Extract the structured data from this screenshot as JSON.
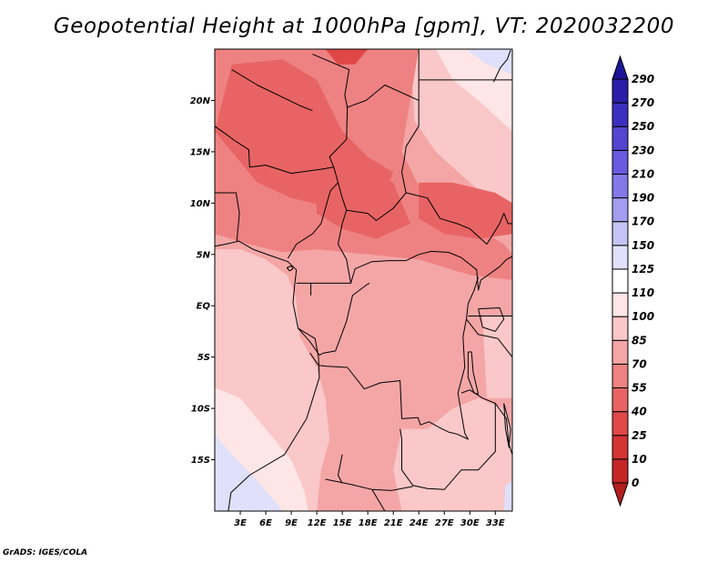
{
  "title": "Geopotential Height at 1000hPa [gpm], VT: 2020032200",
  "credit": "GrADS: IGES/COLA",
  "map": {
    "lon_range": [
      0,
      35
    ],
    "lat_range": [
      -20,
      25
    ],
    "lat_ticks": [
      {
        "value": 20,
        "label": "20N"
      },
      {
        "value": 15,
        "label": "15N"
      },
      {
        "value": 10,
        "label": "10N"
      },
      {
        "value": 5,
        "label": "5N"
      },
      {
        "value": 0,
        "label": "EQ"
      },
      {
        "value": -5,
        "label": "5S"
      },
      {
        "value": -10,
        "label": "10S"
      },
      {
        "value": -15,
        "label": "15S"
      }
    ],
    "lon_ticks": [
      {
        "value": 3,
        "label": "3E"
      },
      {
        "value": 6,
        "label": "6E"
      },
      {
        "value": 9,
        "label": "9E"
      },
      {
        "value": 12,
        "label": "12E"
      },
      {
        "value": 15,
        "label": "15E"
      },
      {
        "value": 18,
        "label": "18E"
      },
      {
        "value": 21,
        "label": "21E"
      },
      {
        "value": 24,
        "label": "24E"
      },
      {
        "value": 27,
        "label": "27E"
      },
      {
        "value": 30,
        "label": "30E"
      },
      {
        "value": 33,
        "label": "33E"
      }
    ]
  },
  "colorbar": {
    "levels": [
      "0",
      "10",
      "25",
      "40",
      "55",
      "70",
      "85",
      "100",
      "110",
      "125",
      "150",
      "170",
      "190",
      "210",
      "230",
      "250",
      "270",
      "290"
    ],
    "colors": [
      "#b41e1e",
      "#c42626",
      "#d43434",
      "#e04848",
      "#e86464",
      "#ee8282",
      "#f4a6a6",
      "#fac8c8",
      "#ffe6e6",
      "#ffffff",
      "#e0e0fa",
      "#c4c4f4",
      "#a49cee",
      "#8478e8",
      "#6a5ae0",
      "#5544d0",
      "#3c30c0",
      "#2a1ea8",
      "#1c1496"
    ]
  },
  "regions": [
    {
      "name": "bg",
      "color": "#f4a6a6",
      "points": [
        [
          0,
          25
        ],
        [
          35,
          25
        ],
        [
          35,
          -20
        ],
        [
          0,
          -20
        ]
      ]
    },
    {
      "name": "ocean-west",
      "color": "#fac8c8",
      "points": [
        [
          0,
          5.5
        ],
        [
          3,
          5.5
        ],
        [
          6,
          4.5
        ],
        [
          8.5,
          3
        ],
        [
          9.5,
          1
        ],
        [
          10,
          -3
        ],
        [
          12,
          -6
        ],
        [
          13,
          -9
        ],
        [
          13.5,
          -13
        ],
        [
          12.5,
          -16
        ],
        [
          12,
          -20
        ],
        [
          0,
          -20
        ]
      ]
    },
    {
      "name": "light-south",
      "color": "#ffe6e6",
      "points": [
        [
          0,
          -8
        ],
        [
          3,
          -9
        ],
        [
          6,
          -12
        ],
        [
          9,
          -15
        ],
        [
          10.5,
          -18
        ],
        [
          11,
          -20
        ],
        [
          0,
          -20
        ]
      ]
    },
    {
      "name": "blue-southwest",
      "color": "#e0e0fa",
      "points": [
        [
          0,
          -12.5
        ],
        [
          2,
          -14.5
        ],
        [
          5,
          -17
        ],
        [
          7,
          -19
        ],
        [
          8,
          -20
        ],
        [
          0,
          -20
        ]
      ]
    },
    {
      "name": "light-southeast",
      "color": "#fac8c8",
      "points": [
        [
          22,
          -12
        ],
        [
          25,
          -12
        ],
        [
          28,
          -10
        ],
        [
          31,
          -9
        ],
        [
          34,
          -10
        ],
        [
          35,
          -12
        ],
        [
          35,
          -20
        ],
        [
          22,
          -20
        ],
        [
          21,
          -16
        ]
      ]
    },
    {
      "name": "blue-southeast",
      "color": "#e0e0fa",
      "points": [
        [
          34.2,
          -17.5
        ],
        [
          35,
          -17
        ],
        [
          35,
          -20
        ],
        [
          34,
          -20
        ]
      ]
    },
    {
      "name": "light-east-ocean",
      "color": "#fac8c8",
      "points": [
        [
          31.5,
          -1
        ],
        [
          35,
          -1
        ],
        [
          35,
          -9
        ],
        [
          32,
          -9
        ]
      ]
    },
    {
      "name": "ne-light",
      "color": "#fac8c8",
      "points": [
        [
          23,
          25
        ],
        [
          35,
          25
        ],
        [
          35,
          8
        ],
        [
          33,
          10
        ],
        [
          30,
          12
        ],
        [
          26,
          15
        ],
        [
          23.5,
          18
        ]
      ]
    },
    {
      "name": "ne-white",
      "color": "#ffe6e6",
      "points": [
        [
          26,
          25
        ],
        [
          35,
          25
        ],
        [
          35,
          17
        ],
        [
          31,
          20
        ],
        [
          28,
          22
        ]
      ]
    },
    {
      "name": "ne-blue",
      "color": "#e0e0fa",
      "points": [
        [
          29.5,
          25
        ],
        [
          35,
          25
        ],
        [
          35,
          22.5
        ],
        [
          32,
          23.5
        ]
      ]
    },
    {
      "name": "north-medium",
      "color": "#ee8282",
      "points": [
        [
          0,
          25
        ],
        [
          24,
          25
        ],
        [
          23,
          20
        ],
        [
          22,
          15
        ],
        [
          25,
          10
        ],
        [
          30,
          8
        ],
        [
          34,
          6
        ],
        [
          35,
          5
        ],
        [
          35,
          2.5
        ],
        [
          30,
          3
        ],
        [
          24,
          4.5
        ],
        [
          18,
          5
        ],
        [
          12,
          5.5
        ],
        [
          8,
          5.2
        ],
        [
          4,
          6
        ],
        [
          0,
          7
        ]
      ]
    },
    {
      "name": "north-dark",
      "color": "#e86464",
      "points": [
        [
          2,
          23.5
        ],
        [
          8,
          24
        ],
        [
          12,
          22
        ],
        [
          15,
          17
        ],
        [
          18,
          14.5
        ],
        [
          21,
          13
        ],
        [
          19,
          9
        ],
        [
          14,
          9.5
        ],
        [
          9,
          10.5
        ],
        [
          5,
          12
        ],
        [
          2,
          15
        ],
        [
          0,
          17
        ]
      ]
    },
    {
      "name": "central-dark",
      "color": "#e86464",
      "points": [
        [
          12,
          13
        ],
        [
          17,
          13.5
        ],
        [
          21,
          12
        ],
        [
          23,
          8
        ],
        [
          19,
          6.5
        ],
        [
          15,
          7.5
        ],
        [
          12,
          9
        ]
      ]
    },
    {
      "name": "east-dark",
      "color": "#e86464",
      "points": [
        [
          24,
          12
        ],
        [
          28,
          12
        ],
        [
          33,
          11
        ],
        [
          35,
          10
        ],
        [
          35,
          7
        ],
        [
          31,
          6.5
        ],
        [
          27,
          7
        ],
        [
          24,
          8.5
        ]
      ]
    },
    {
      "name": "top-dark",
      "color": "#e04848",
      "points": [
        [
          13,
          25
        ],
        [
          18,
          25
        ],
        [
          16.5,
          23.5
        ],
        [
          14.5,
          23.5
        ]
      ]
    }
  ],
  "borders": [
    [
      [
        1.6,
        -20
      ],
      [
        1.9,
        -18.2
      ],
      [
        4.1,
        -16.5
      ],
      [
        8.2,
        -14.5
      ],
      [
        10.8,
        -11
      ],
      [
        12.3,
        -7
      ],
      [
        12.2,
        -5
      ],
      [
        11.8,
        -3.2
      ],
      [
        9.8,
        -2.2
      ],
      [
        9.2,
        0.3
      ],
      [
        9.4,
        2
      ],
      [
        9.6,
        3.5
      ],
      [
        8.6,
        4.3
      ],
      [
        6.5,
        4.9
      ],
      [
        4.5,
        5.5
      ],
      [
        2.8,
        6.3
      ],
      [
        1.3,
        6.0
      ],
      [
        0,
        5.8
      ]
    ],
    [
      [
        0,
        17.5
      ],
      [
        2.5,
        16
      ],
      [
        4,
        15.2
      ],
      [
        4.1,
        13.5
      ],
      [
        6,
        13.7
      ],
      [
        9,
        12.9
      ],
      [
        12.5,
        13.3
      ],
      [
        14,
        13.5
      ],
      [
        14.5,
        12
      ],
      [
        13.6,
        11.2
      ],
      [
        12.5,
        8
      ],
      [
        11.5,
        7
      ],
      [
        9.6,
        6
      ],
      [
        8.6,
        4.6
      ]
    ],
    [
      [
        0,
        11
      ],
      [
        2.5,
        11
      ],
      [
        2.9,
        9
      ],
      [
        2.6,
        6.3
      ]
    ],
    [
      [
        2,
        23
      ],
      [
        5,
        21.5
      ],
      [
        10,
        19.5
      ],
      [
        11.5,
        19
      ]
    ],
    [
      [
        11.5,
        24.5
      ],
      [
        15.8,
        23
      ],
      [
        15.3,
        20.5
      ],
      [
        15.6,
        19.3
      ],
      [
        15.5,
        16.2
      ],
      [
        13.5,
        14.5
      ],
      [
        14,
        13.5
      ]
    ],
    [
      [
        15.5,
        19.3
      ],
      [
        17.8,
        20
      ],
      [
        20,
        21.5
      ],
      [
        24,
        20
      ],
      [
        24,
        17.5
      ],
      [
        22.5,
        15.5
      ],
      [
        22.3,
        14.3
      ],
      [
        22,
        13
      ],
      [
        22.5,
        11
      ]
    ],
    [
      [
        24,
        25
      ],
      [
        24,
        20
      ]
    ],
    [
      [
        24,
        22
      ],
      [
        35,
        22
      ]
    ],
    [
      [
        14.5,
        12
      ],
      [
        15,
        10.5
      ],
      [
        15.5,
        9.3
      ],
      [
        18,
        9
      ],
      [
        19,
        8.3
      ],
      [
        21,
        9.5
      ],
      [
        22.5,
        11
      ]
    ],
    [
      [
        22.5,
        11
      ],
      [
        25,
        10.5
      ],
      [
        26.5,
        8.5
      ],
      [
        28.5,
        8
      ],
      [
        30,
        7.5
      ],
      [
        32,
        6
      ],
      [
        33.5,
        8
      ],
      [
        34,
        9
      ],
      [
        34.5,
        8
      ],
      [
        35,
        8
      ]
    ],
    [
      [
        15.5,
        9.3
      ],
      [
        15,
        8
      ],
      [
        14.5,
        6
      ],
      [
        15.5,
        4.5
      ],
      [
        16,
        2.2
      ],
      [
        16.5,
        3.6
      ],
      [
        18.5,
        4.3
      ],
      [
        20.5,
        4.4
      ],
      [
        22.5,
        4.4
      ],
      [
        24,
        5
      ],
      [
        25.5,
        5.3
      ],
      [
        27.5,
        5.2
      ],
      [
        29,
        4.7
      ],
      [
        30.8,
        3.5
      ],
      [
        31,
        1.5
      ]
    ],
    [
      [
        9.6,
        2.2
      ],
      [
        11.3,
        2.2
      ],
      [
        13,
        2.2
      ],
      [
        16,
        2.2
      ]
    ],
    [
      [
        11.3,
        1
      ],
      [
        11.3,
        2.2
      ]
    ],
    [
      [
        9.8,
        -2.2
      ],
      [
        11.2,
        -3.5
      ],
      [
        12.3,
        -4.8
      ],
      [
        12.8,
        -4.6
      ],
      [
        14.2,
        -4.4
      ],
      [
        15.5,
        -1.5
      ],
      [
        16.2,
        1
      ],
      [
        17.8,
        2
      ],
      [
        18.2,
        2.2
      ]
    ],
    [
      [
        11.2,
        -4.6
      ],
      [
        12.2,
        -5.8
      ],
      [
        13.2,
        -5.9
      ],
      [
        15.6,
        -6
      ],
      [
        17.6,
        -8.1
      ],
      [
        19.5,
        -7.5
      ],
      [
        21.8,
        -7.3
      ],
      [
        22,
        -11
      ],
      [
        23.9,
        -10.9
      ],
      [
        24.2,
        -11.6
      ],
      [
        25.2,
        -11.3
      ],
      [
        26.5,
        -11.9
      ],
      [
        27.5,
        -12.3
      ],
      [
        28.5,
        -12.5
      ],
      [
        29.8,
        -13
      ],
      [
        29.4,
        -12.4
      ],
      [
        28.6,
        -8.5
      ],
      [
        29.4,
        -6
      ],
      [
        29.2,
        -3
      ],
      [
        29.6,
        -1.3
      ],
      [
        29.8,
        0.2
      ],
      [
        30.5,
        1.5
      ],
      [
        31,
        2.8
      ]
    ],
    [
      [
        21.8,
        -12
      ],
      [
        22,
        -13
      ],
      [
        22,
        -16
      ],
      [
        23.3,
        -17.5
      ],
      [
        25,
        -17.8
      ],
      [
        27,
        -17.9
      ],
      [
        29,
        -16
      ],
      [
        31,
        -16
      ],
      [
        33,
        -14.2
      ],
      [
        33,
        -9.5
      ],
      [
        31.5,
        -9
      ],
      [
        30,
        -8.2
      ],
      [
        29,
        -8.5
      ]
    ],
    [
      [
        13,
        -16.9
      ],
      [
        16,
        -17.4
      ],
      [
        18.5,
        -17.9
      ],
      [
        20.8,
        -18
      ],
      [
        23.3,
        -17.6
      ]
    ],
    [
      [
        18.5,
        -17.9
      ],
      [
        20,
        -20
      ]
    ],
    [
      [
        29.8,
        -1
      ],
      [
        31,
        -1
      ],
      [
        34,
        -1
      ],
      [
        35,
        -1
      ]
    ],
    [
      [
        29.6,
        -1.3
      ],
      [
        31,
        -2.8
      ],
      [
        33.3,
        -3.2
      ]
    ],
    [
      [
        33.3,
        -3.2
      ],
      [
        35,
        -5
      ]
    ],
    [
      [
        31,
        1.5
      ],
      [
        31.3,
        2.5
      ],
      [
        33.5,
        3.8
      ],
      [
        34.3,
        4.5
      ],
      [
        35,
        4.8
      ]
    ],
    [
      [
        33,
        -9.5
      ],
      [
        34.3,
        -11
      ],
      [
        34.6,
        -13.5
      ],
      [
        35,
        -14.5
      ]
    ],
    [
      [
        29.8,
        -4.5
      ],
      [
        29.8,
        -7
      ],
      [
        30.5,
        -8.5
      ],
      [
        31,
        -8.6
      ],
      [
        30.4,
        -6.5
      ],
      [
        30.2,
        -4.5
      ],
      [
        29.8,
        -4.5
      ]
    ],
    [
      [
        31,
        -0.3
      ],
      [
        33.5,
        -0.2
      ],
      [
        34,
        -1.3
      ],
      [
        33,
        -2.5
      ],
      [
        31.5,
        -2.1
      ],
      [
        31,
        -0.3
      ]
    ],
    [
      [
        34,
        -9.5
      ],
      [
        34.8,
        -12
      ],
      [
        34.6,
        -13.8
      ],
      [
        34.2,
        -12
      ],
      [
        34,
        -9.5
      ]
    ],
    [
      [
        32.8,
        21.8
      ],
      [
        33.6,
        23.2
      ],
      [
        34.4,
        24
      ],
      [
        34.8,
        24.9
      ]
    ],
    [
      [
        9.2,
        3.6
      ],
      [
        8.8,
        3.4
      ],
      [
        8.5,
        3.7
      ],
      [
        9,
        3.9
      ],
      [
        9.2,
        3.6
      ]
    ],
    [
      [
        15,
        -14.5
      ],
      [
        14.5,
        -16.5
      ],
      [
        15,
        -17.3
      ]
    ]
  ]
}
